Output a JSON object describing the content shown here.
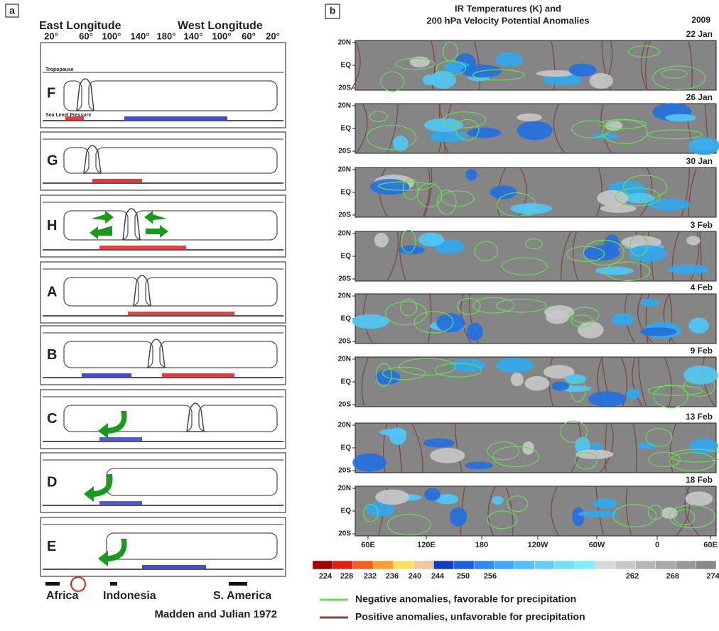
{
  "panel_a": {
    "label": "a",
    "east_longitude": "East Longitude",
    "west_longitude": "West Longitude",
    "longitude_ticks": [
      "20°",
      "60°",
      "100°",
      "140°",
      "180°",
      "140°",
      "100°",
      "60°",
      "20°"
    ],
    "top_labels": [
      "Tropopause",
      "Sea Level Pressure"
    ],
    "stages": [
      "F",
      "G",
      "H",
      "A",
      "B",
      "C",
      "D",
      "E"
    ],
    "regions": [
      "Africa",
      "Indonesia",
      "S. America"
    ],
    "credit": "Madden and Julian 1972"
  },
  "panel_b": {
    "label": "b",
    "title": [
      "IR Temperatures (K) and",
      "200 hPa Velocity Potential Anomalies"
    ],
    "year": "2009",
    "dates": [
      "22 Jan",
      "26 Jan",
      "30 Jan",
      "3 Feb",
      "4 Feb",
      "9 Feb",
      "13 Feb",
      "18 Feb"
    ],
    "lat_labels": [
      "20N",
      "EQ",
      "20S"
    ],
    "lon_labels": [
      "60E",
      "120E",
      "180",
      "120W",
      "60W",
      "0",
      "60E"
    ],
    "colorbar": {
      "labels": [
        224,
        228,
        232,
        236,
        240,
        244,
        250,
        256,
        262,
        268,
        274
      ],
      "colors": [
        "#a00000",
        "#e02010",
        "#f06020",
        "#f8a030",
        "#f8e060",
        "#f0c8a0",
        "#1040c0",
        "#2060e0",
        "#3088f0",
        "#40a8f8",
        "#50c0f8",
        "#60d0f8",
        "#70e0f8",
        "#80f0f8",
        "#d8d8d8",
        "#c8c8c8",
        "#b8b8b8",
        "#a8a8a8",
        "#989898",
        "#888888"
      ]
    },
    "legend": [
      {
        "label": "Negative anomalies, favorable for precipitation",
        "color": "#66dd55"
      },
      {
        "label": "Positive anomalies, unfavorable for precipitation",
        "color": "#7a4a45"
      }
    ]
  }
}
